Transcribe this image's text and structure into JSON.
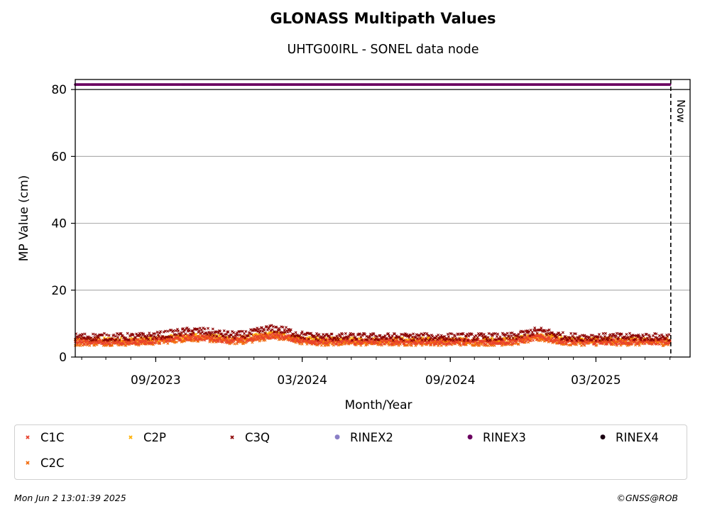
{
  "chart_data": {
    "type": "scatter",
    "title": "GLONASS Multipath Values",
    "subtitle": "UHTG00IRL - SONEL data node",
    "xlabel": "Month/Year",
    "ylabel": "MP Value (cm)",
    "x_range": [
      "2023-05-24",
      "2025-06-26"
    ],
    "ylim": [
      0,
      83
    ],
    "y_ticks": [
      "0",
      "20",
      "40",
      "60",
      "80"
    ],
    "x_tick_labels": [
      "09/2023",
      "03/2024",
      "09/2024",
      "03/2025"
    ],
    "x_tick_dates": [
      "2023-09-01",
      "2024-03-01",
      "2024-09-01",
      "2025-03-01"
    ],
    "now_label": "Now",
    "now_date": "2025-06-02",
    "data_start": "2023-05-24",
    "data_end": "2025-06-01",
    "grid": "horizontal",
    "legend_placement": "bottom-outside",
    "series": [
      {
        "name": "C1C",
        "marker": "x",
        "color": "#e8412c",
        "typical": 4.6
      },
      {
        "name": "C2C",
        "marker": "x",
        "color": "#f26a0a",
        "typical": 4.2
      },
      {
        "name": "C2P",
        "marker": "x",
        "color": "#ffb000",
        "typical": 5.0
      },
      {
        "name": "C3Q",
        "marker": "x",
        "color": "#8b0000",
        "typical": 6.0
      },
      {
        "name": "RINEX2",
        "marker": "o",
        "color": "#8a7fc6"
      },
      {
        "name": "RINEX3",
        "marker": "o",
        "color": "#6b0060",
        "value": 81.5
      },
      {
        "name": "RINEX4",
        "marker": "o",
        "color": "#1a0011"
      }
    ]
  },
  "footer": {
    "timestamp": "Mon Jun  2 13:01:39 2025",
    "credit": "©GNSS@ROB"
  }
}
